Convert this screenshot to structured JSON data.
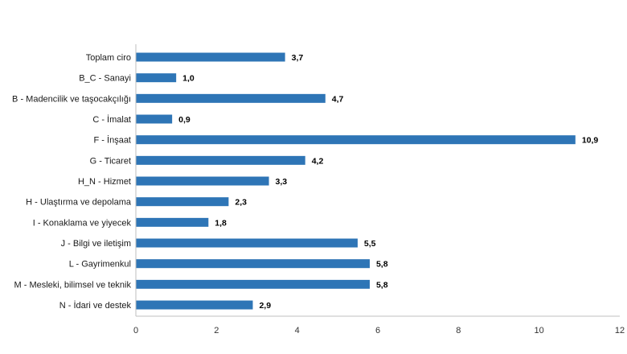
{
  "chart_data": {
    "type": "bar",
    "orientation": "horizontal",
    "categories": [
      "Toplam ciro",
      "B_C - Sanayi",
      "B - Madencilik ve taşocakçılığı",
      "C - İmalat",
      "F - İnşaat",
      "G - Ticaret",
      "H_N - Hizmet",
      "H - Ulaştırma ve depolama",
      "I - Konaklama ve yiyecek",
      "J - Bilgi ve iletişim",
      "L - Gayrimenkul",
      "M - Mesleki, bilimsel ve teknik",
      "N - İdari ve destek"
    ],
    "values": [
      3.7,
      1.0,
      4.7,
      0.9,
      10.9,
      4.2,
      3.3,
      2.3,
      1.8,
      5.5,
      5.8,
      5.8,
      2.9
    ],
    "value_labels": [
      "3,7",
      "1,0",
      "4,7",
      "0,9",
      "10,9",
      "4,2",
      "3,3",
      "2,3",
      "1,8",
      "5,5",
      "5,8",
      "5,8",
      "2,9"
    ],
    "xlim": [
      0,
      12
    ],
    "xticks": [
      "0",
      "2",
      "4",
      "6",
      "8",
      "10",
      "12"
    ],
    "bar_color": "#2e75b6",
    "axis_color": "#bfbfbf",
    "grid": false,
    "legend": "none"
  }
}
